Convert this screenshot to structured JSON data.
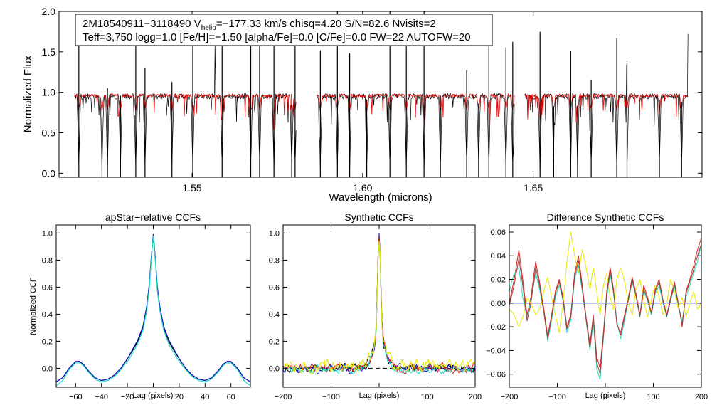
{
  "colors": {
    "axis": "#000000",
    "spectrum_obs": "#000000",
    "spectrum_model": "#e00000",
    "ccf_black": "#000000",
    "ccf_blue": "#1010c8",
    "ccf_cyan": "#20e0c0",
    "ccf_red": "#e02020",
    "ccf_yellow": "#e8e800",
    "ccf_brown": "#a04040"
  },
  "chart_data": [
    {
      "id": "spectrum",
      "type": "line",
      "title_line1_prefix": "2M18540911−3118490  V",
      "title_line1_sub": "helio",
      "title_line1_suffix": "=−177.33 km/s  chisq=4.20  S/N=82.6  Nvisits=2",
      "title_line2": "Teff=3,750 logg=1.0 [Fe/H]=−1.50 [alpha/Fe]=0.0 [C/Fe]=0.0 FW=22 AUTOFW=20",
      "xlabel": "Wavelength (microns)",
      "ylabel": "Normalized Flux",
      "xlim": [
        1.511,
        1.6995
      ],
      "ylim": [
        -0.05,
        2.0
      ],
      "xticks": [
        1.55,
        1.6,
        1.65
      ],
      "xtick_labels": [
        "1.55",
        "1.60",
        "1.65"
      ],
      "yticks": [
        0.0,
        0.5,
        1.0,
        1.5,
        2.0
      ],
      "ytick_labels": [
        "0.0",
        "0.5",
        "1.0",
        "1.5",
        "2.0"
      ],
      "chip_ranges": [
        [
          1.5155,
          1.5805
        ],
        [
          1.5865,
          1.6445
        ],
        [
          1.6475,
          1.6955
        ]
      ],
      "series": [
        {
          "name": "observed",
          "color": "#000000",
          "continuum": 0.95,
          "noise": 0.035
        },
        {
          "name": "model",
          "color": "#e00000",
          "continuum": 0.96,
          "noise": 0.02
        }
      ],
      "strong_lines": [
        1.5168,
        1.5236,
        1.5252,
        1.529,
        1.5335,
        1.5362,
        1.5441,
        1.5502,
        1.5588,
        1.5672,
        1.5698,
        1.574,
        1.5792,
        1.5802,
        1.5876,
        1.5926,
        1.5962,
        1.6012,
        1.608,
        1.6128,
        1.618,
        1.6228,
        1.6305,
        1.634,
        1.637,
        1.642,
        1.644,
        1.652,
        1.656,
        1.661,
        1.663,
        1.667,
        1.6745,
        1.6775,
        1.687,
        1.6935
      ]
    },
    {
      "id": "apstar-ccf",
      "type": "line",
      "title": "apStar−relative CCFs",
      "xlabel": "Lag (pixels)",
      "ylabel": "Normalized CCF",
      "xlim": [
        -75,
        75
      ],
      "ylim": [
        -0.14,
        1.06
      ],
      "xticks": [
        -60,
        -40,
        -20,
        0,
        20,
        40,
        60
      ],
      "xtick_labels": [
        "−60",
        "−40",
        "−20",
        "0",
        "20",
        "40",
        "60"
      ],
      "yticks": [
        0.0,
        0.2,
        0.4,
        0.6,
        0.8,
        1.0
      ],
      "ytick_labels": [
        "0.0",
        "0.2",
        "0.4",
        "0.6",
        "0.8",
        "1.0"
      ],
      "series": [
        {
          "name": "combined",
          "color": "#000000",
          "x": [
            -75,
            -70,
            -65,
            -60,
            -57,
            -54,
            -50,
            -45,
            -40,
            -35,
            -30,
            -25,
            -20,
            -16,
            -12,
            -8,
            -5,
            -3,
            -1.5,
            0,
            1.5,
            3,
            5,
            8,
            12,
            16,
            20,
            25,
            30,
            35,
            40,
            45,
            50,
            54,
            57,
            60,
            65,
            70,
            75
          ],
          "y": [
            -0.1,
            -0.07,
            0.0,
            0.05,
            0.05,
            0.03,
            -0.02,
            -0.07,
            -0.09,
            -0.08,
            -0.05,
            0.0,
            0.07,
            0.13,
            0.2,
            0.3,
            0.45,
            0.62,
            0.82,
            0.98,
            0.82,
            0.6,
            0.45,
            0.3,
            0.2,
            0.13,
            0.07,
            0.0,
            -0.05,
            -0.08,
            -0.09,
            -0.07,
            -0.02,
            0.03,
            0.05,
            0.05,
            0.0,
            -0.07,
            -0.1
          ]
        },
        {
          "name": "visit 1",
          "color": "#1010c8",
          "x": [
            -75,
            -70,
            -65,
            -60,
            -57,
            -54,
            -50,
            -45,
            -40,
            -35,
            -30,
            -25,
            -20,
            -16,
            -12,
            -8,
            -5,
            -3,
            -1.5,
            0,
            1.5,
            3,
            5,
            8,
            12,
            16,
            20,
            25,
            30,
            35,
            40,
            45,
            50,
            54,
            57,
            60,
            65,
            70,
            75
          ],
          "y": [
            -0.1,
            -0.07,
            0.0,
            0.05,
            0.05,
            0.03,
            -0.02,
            -0.07,
            -0.09,
            -0.08,
            -0.05,
            0.0,
            0.07,
            0.14,
            0.21,
            0.31,
            0.46,
            0.63,
            0.83,
            0.99,
            0.83,
            0.61,
            0.46,
            0.31,
            0.21,
            0.14,
            0.07,
            0.0,
            -0.05,
            -0.08,
            -0.09,
            -0.07,
            -0.02,
            0.03,
            0.05,
            0.05,
            0.0,
            -0.07,
            -0.1
          ]
        },
        {
          "name": "visit 2",
          "color": "#20e0c0",
          "x": [
            -75,
            -70,
            -65,
            -60,
            -57,
            -54,
            -50,
            -45,
            -40,
            -35,
            -30,
            -25,
            -20,
            -16,
            -12,
            -8,
            -5,
            -3,
            -1.5,
            0,
            1.5,
            3,
            5,
            8,
            12,
            16,
            20,
            25,
            30,
            35,
            40,
            45,
            50,
            54,
            57,
            60,
            65,
            70,
            75
          ],
          "y": [
            -0.13,
            -0.09,
            -0.01,
            0.04,
            0.04,
            0.02,
            -0.03,
            -0.08,
            -0.1,
            -0.09,
            -0.06,
            -0.01,
            0.05,
            0.11,
            0.18,
            0.28,
            0.43,
            0.6,
            0.81,
            0.98,
            0.81,
            0.58,
            0.43,
            0.28,
            0.18,
            0.11,
            0.05,
            -0.01,
            -0.06,
            -0.09,
            -0.1,
            -0.08,
            -0.03,
            0.02,
            0.04,
            0.04,
            -0.01,
            -0.09,
            -0.13
          ]
        }
      ]
    },
    {
      "id": "synthetic-ccf",
      "type": "line",
      "title": "Synthetic CCFs",
      "xlabel": "Lag (pixels)",
      "ylabel": "",
      "xlim": [
        -200,
        200
      ],
      "ylim": [
        -0.14,
        1.06
      ],
      "xticks": [
        -200,
        -100,
        0,
        100,
        200
      ],
      "xtick_labels": [
        "−200",
        "−100",
        "0",
        "100",
        "200"
      ],
      "yticks": [
        0.0,
        0.2,
        0.4,
        0.6,
        0.8,
        1.0
      ],
      "ytick_labels": [
        "0.0",
        "0.2",
        "0.4",
        "0.6",
        "0.8",
        "1.0"
      ],
      "zero_line": 0.0,
      "series": [
        {
          "name": "black",
          "color": "#000000",
          "offset": 0.0,
          "peak": 1.0,
          "noise": 0.022
        },
        {
          "name": "blue",
          "color": "#1010c8",
          "offset": 0.0,
          "peak": 0.99,
          "noise": 0.022
        },
        {
          "name": "red",
          "color": "#e02020",
          "offset": 0.0,
          "peak": 0.98,
          "noise": 0.025
        },
        {
          "name": "cyan",
          "color": "#20e0c0",
          "offset": -0.01,
          "peak": 0.97,
          "noise": 0.02
        },
        {
          "name": "yellow",
          "color": "#e8e800",
          "offset": 0.02,
          "peak": 0.96,
          "noise": 0.035
        }
      ]
    },
    {
      "id": "difference-ccf",
      "type": "line",
      "title": "Difference Synthetic CCFs",
      "xlabel": "Lag (pixels)",
      "ylabel": "",
      "xlim": [
        -200,
        200
      ],
      "ylim": [
        -0.071,
        0.066
      ],
      "xticks": [
        -200,
        -100,
        0,
        100,
        200
      ],
      "xtick_labels": [
        "−200",
        "−100",
        "0",
        "100",
        "200"
      ],
      "yticks": [
        -0.06,
        -0.04,
        -0.02,
        0.0,
        0.02,
        0.04,
        0.06
      ],
      "ytick_labels": [
        "−0.06",
        "−0.04",
        "−0.02",
        "0.00",
        "0.02",
        "0.04",
        "0.06"
      ],
      "series": [
        {
          "name": "zero",
          "color": "#1010c8",
          "x": [
            -200,
            200
          ],
          "y": [
            0.0,
            0.0
          ]
        },
        {
          "name": "red",
          "color": "#e02020",
          "x": [
            -200,
            -190,
            -180,
            -172,
            -163,
            -155,
            -145,
            -137,
            -128,
            -120,
            -112,
            -104,
            -96,
            -88,
            -80,
            -72,
            -64,
            -56,
            -48,
            -40,
            -32,
            -25,
            -18,
            -11,
            -4,
            3,
            10,
            17,
            24,
            32,
            40,
            48,
            56,
            64,
            72,
            80,
            88,
            96,
            104,
            112,
            120,
            128,
            136,
            144,
            152,
            160,
            168,
            176,
            184,
            192,
            200
          ],
          "y": [
            0.0,
            0.02,
            0.045,
            0.02,
            -0.01,
            0.005,
            0.035,
            0.018,
            -0.005,
            -0.028,
            -0.01,
            0.01,
            0.02,
            0.005,
            -0.02,
            -0.01,
            0.025,
            0.04,
            0.015,
            -0.012,
            -0.035,
            -0.01,
            -0.045,
            -0.055,
            -0.025,
            0.01,
            0.03,
            0.012,
            -0.018,
            -0.025,
            -0.01,
            0.005,
            0.022,
            0.008,
            -0.01,
            0.015,
            0.005,
            -0.008,
            0.012,
            0.02,
            0.003,
            -0.01,
            0.005,
            0.018,
            0.0,
            -0.02,
            0.01,
            0.02,
            0.032,
            0.045,
            0.055
          ]
        },
        {
          "name": "cyan",
          "color": "#20e0c0",
          "x": [
            -200,
            -190,
            -180,
            -172,
            -163,
            -155,
            -145,
            -137,
            -128,
            -120,
            -112,
            -104,
            -96,
            -88,
            -80,
            -72,
            -64,
            -56,
            -48,
            -40,
            -32,
            -25,
            -18,
            -11,
            -4,
            3,
            10,
            17,
            24,
            32,
            40,
            48,
            56,
            64,
            72,
            80,
            88,
            96,
            104,
            112,
            120,
            128,
            136,
            144,
            152,
            160,
            168,
            176,
            184,
            192,
            200
          ],
          "y": [
            0.01,
            0.025,
            0.03,
            0.005,
            -0.012,
            0.002,
            0.025,
            0.012,
            -0.008,
            -0.032,
            -0.015,
            0.005,
            0.015,
            0.002,
            -0.025,
            -0.015,
            0.02,
            0.032,
            0.01,
            -0.015,
            -0.04,
            -0.015,
            -0.055,
            -0.065,
            -0.03,
            0.005,
            0.024,
            0.008,
            -0.015,
            -0.03,
            -0.015,
            0.002,
            0.018,
            0.005,
            -0.012,
            0.01,
            0.002,
            -0.01,
            0.008,
            0.015,
            0.0,
            -0.012,
            0.002,
            0.014,
            -0.002,
            -0.015,
            0.005,
            0.015,
            0.025,
            0.035,
            0.05
          ]
        },
        {
          "name": "yellow",
          "color": "#e8e800",
          "x": [
            -200,
            -190,
            -180,
            -172,
            -163,
            -155,
            -145,
            -137,
            -128,
            -120,
            -112,
            -104,
            -96,
            -88,
            -80,
            -72,
            -64,
            -56,
            -48,
            -40,
            -32,
            -25,
            -18,
            -11,
            -4,
            3,
            10,
            17,
            24,
            32,
            40,
            48,
            56,
            64,
            72,
            80,
            88,
            96,
            104,
            112,
            120,
            128,
            136,
            144,
            152,
            160,
            168,
            176,
            184,
            192,
            200
          ],
          "y": [
            -0.005,
            -0.01,
            -0.02,
            -0.012,
            0.004,
            0.0,
            -0.01,
            -0.005,
            0.01,
            0.022,
            0.005,
            -0.01,
            -0.025,
            0.0,
            0.035,
            0.06,
            0.04,
            0.025,
            0.045,
            0.03,
            0.012,
            0.03,
            0.01,
            -0.01,
            0.015,
            0.025,
            0.005,
            -0.005,
            0.02,
            0.03,
            0.018,
            0.0,
            -0.01,
            0.012,
            0.02,
            0.003,
            -0.012,
            0.004,
            0.015,
            0.005,
            -0.01,
            0.0,
            0.02,
            0.01,
            -0.005,
            0.005,
            -0.012,
            0.0,
            0.01,
            -0.005,
            0.0
          ]
        },
        {
          "name": "brown",
          "color": "#a04040",
          "x": [
            -200,
            -190,
            -180,
            -172,
            -163,
            -155,
            -145,
            -137,
            -128,
            -120,
            -112,
            -104,
            -96,
            -88,
            -80,
            -72,
            -64,
            -56,
            -48,
            -40,
            -32,
            -25,
            -18,
            -11,
            -4,
            3,
            10,
            17,
            24,
            32,
            40,
            48,
            56,
            64,
            72,
            80,
            88,
            96,
            104,
            112,
            120,
            128,
            136,
            144,
            152,
            160,
            168,
            176,
            184,
            192,
            200
          ],
          "y": [
            -0.002,
            0.015,
            0.038,
            0.015,
            -0.015,
            0.0,
            0.03,
            0.015,
            -0.008,
            -0.03,
            -0.012,
            0.008,
            0.018,
            0.003,
            -0.022,
            -0.012,
            0.022,
            0.036,
            0.012,
            -0.014,
            -0.038,
            -0.012,
            -0.05,
            -0.06,
            -0.028,
            0.008,
            0.027,
            0.01,
            -0.017,
            -0.027,
            -0.012,
            0.003,
            0.02,
            0.006,
            -0.011,
            0.012,
            0.003,
            -0.009,
            0.01,
            0.018,
            0.002,
            -0.011,
            0.003,
            0.016,
            -0.001,
            -0.018,
            0.008,
            0.018,
            0.028,
            0.04,
            0.05
          ]
        }
      ]
    }
  ]
}
